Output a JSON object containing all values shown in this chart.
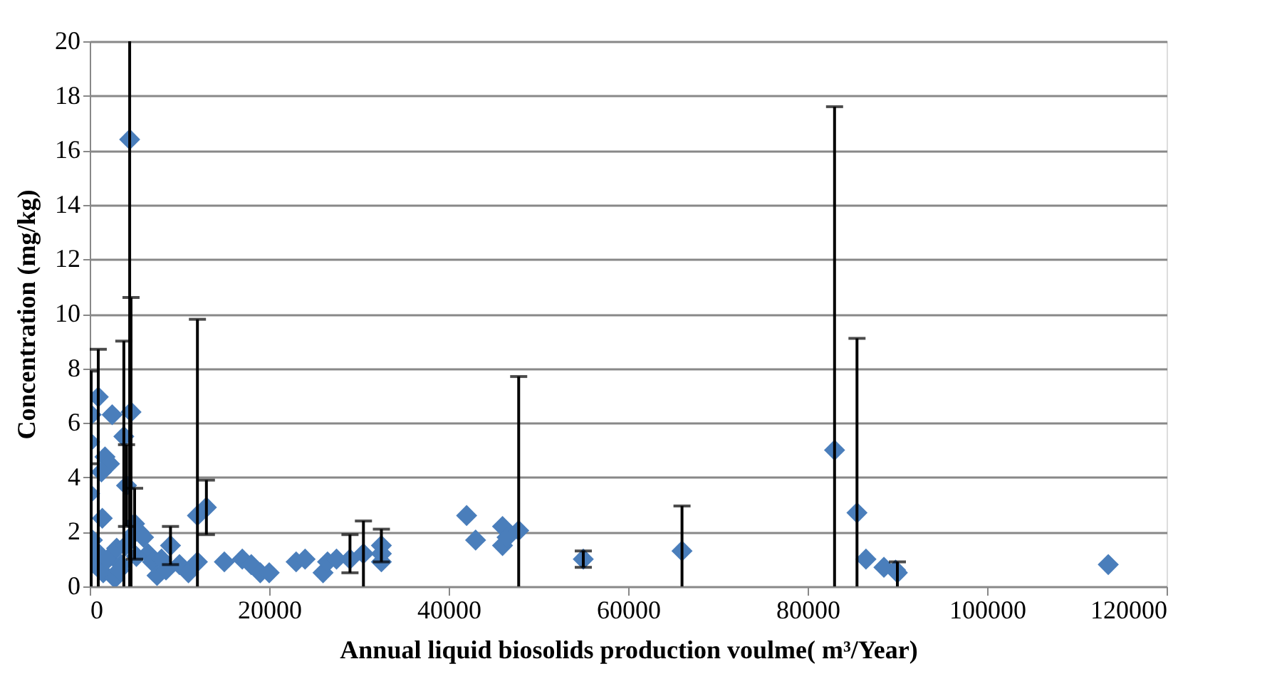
{
  "chart_data": {
    "type": "scatter",
    "xlabel": "Annual liquid biosolids production voulme( m³/Year)",
    "ylabel": "Concentration (mg/kg)",
    "x": [
      950,
      160,
      2500,
      0,
      1700,
      2200,
      1300,
      0,
      1400,
      3800,
      4600,
      4100,
      4450,
      5000,
      600,
      1000,
      1500,
      2000,
      3000,
      3500,
      4000,
      4800,
      5500,
      6000,
      6500,
      7000,
      7500,
      8000,
      8500,
      9000,
      10000,
      11000,
      12000,
      12000,
      13000,
      15000,
      17000,
      18000,
      19000,
      20000,
      23000,
      24000,
      26000,
      26500,
      27500,
      29000,
      30500,
      32500,
      32500,
      32500,
      42000,
      43000,
      46000,
      46000,
      46500,
      47800,
      55000,
      66000,
      83000,
      85500,
      86500,
      88500,
      89800,
      90000,
      113500,
      300,
      2800,
      3300,
      5200
    ],
    "values": [
      6.95,
      6.3,
      6.3,
      5.3,
      4.75,
      4.5,
      4.2,
      3.4,
      2.5,
      5.5,
      6.4,
      3.7,
      16.4,
      2.3,
      0.8,
      1.2,
      0.5,
      1.0,
      1.4,
      0.8,
      1.5,
      1.9,
      2.0,
      1.8,
      1.2,
      0.9,
      0.4,
      1.0,
      0.6,
      1.5,
      0.8,
      0.5,
      0.9,
      2.6,
      2.9,
      0.9,
      1.0,
      0.8,
      0.5,
      0.5,
      0.9,
      1.0,
      0.5,
      0.9,
      1.0,
      1.0,
      1.2,
      1.5,
      1.2,
      0.9,
      2.6,
      1.7,
      2.2,
      1.5,
      1.8,
      2.05,
      1.0,
      1.3,
      5.0,
      2.7,
      1.0,
      0.7,
      0.6,
      0.5,
      0.8,
      1.7,
      0.3,
      0.6,
      1.1
    ],
    "errors": [
      [
        0,
        8.7
      ],
      [
        0,
        7.9
      ],
      null,
      null,
      null,
      null,
      null,
      [
        0,
        4.5
      ],
      null,
      [
        0,
        9.0
      ],
      [
        0,
        10.6
      ],
      [
        2.2,
        5.2
      ],
      [
        0,
        20
      ],
      [
        1.0,
        3.6
      ],
      null,
      null,
      null,
      null,
      null,
      null,
      null,
      null,
      null,
      null,
      null,
      null,
      null,
      null,
      null,
      [
        0.8,
        2.2
      ],
      null,
      null,
      null,
      [
        0,
        9.8
      ],
      [
        1.9,
        3.9
      ],
      null,
      null,
      null,
      null,
      null,
      null,
      null,
      null,
      null,
      null,
      [
        0.5,
        1.9
      ],
      [
        0.0,
        2.4
      ],
      [
        0.9,
        2.1
      ],
      null,
      null,
      null,
      null,
      null,
      null,
      null,
      [
        0,
        7.7
      ],
      [
        0.7,
        1.3
      ],
      [
        0,
        2.95
      ],
      [
        0,
        17.6
      ],
      [
        0,
        9.1
      ],
      null,
      null,
      null,
      [
        0,
        0.9
      ],
      null,
      null,
      null,
      null,
      null
    ],
    "color": "#4a7ebb",
    "marker": "diamond",
    "xlim": [
      0,
      120000
    ],
    "xticks": [
      0,
      20000,
      40000,
      60000,
      80000,
      100000,
      120000
    ],
    "ylim": [
      0,
      20
    ],
    "yticks": [
      0,
      2,
      4,
      6,
      8,
      10,
      12,
      14,
      16,
      18,
      20
    ],
    "grid": "y",
    "legend": false
  }
}
